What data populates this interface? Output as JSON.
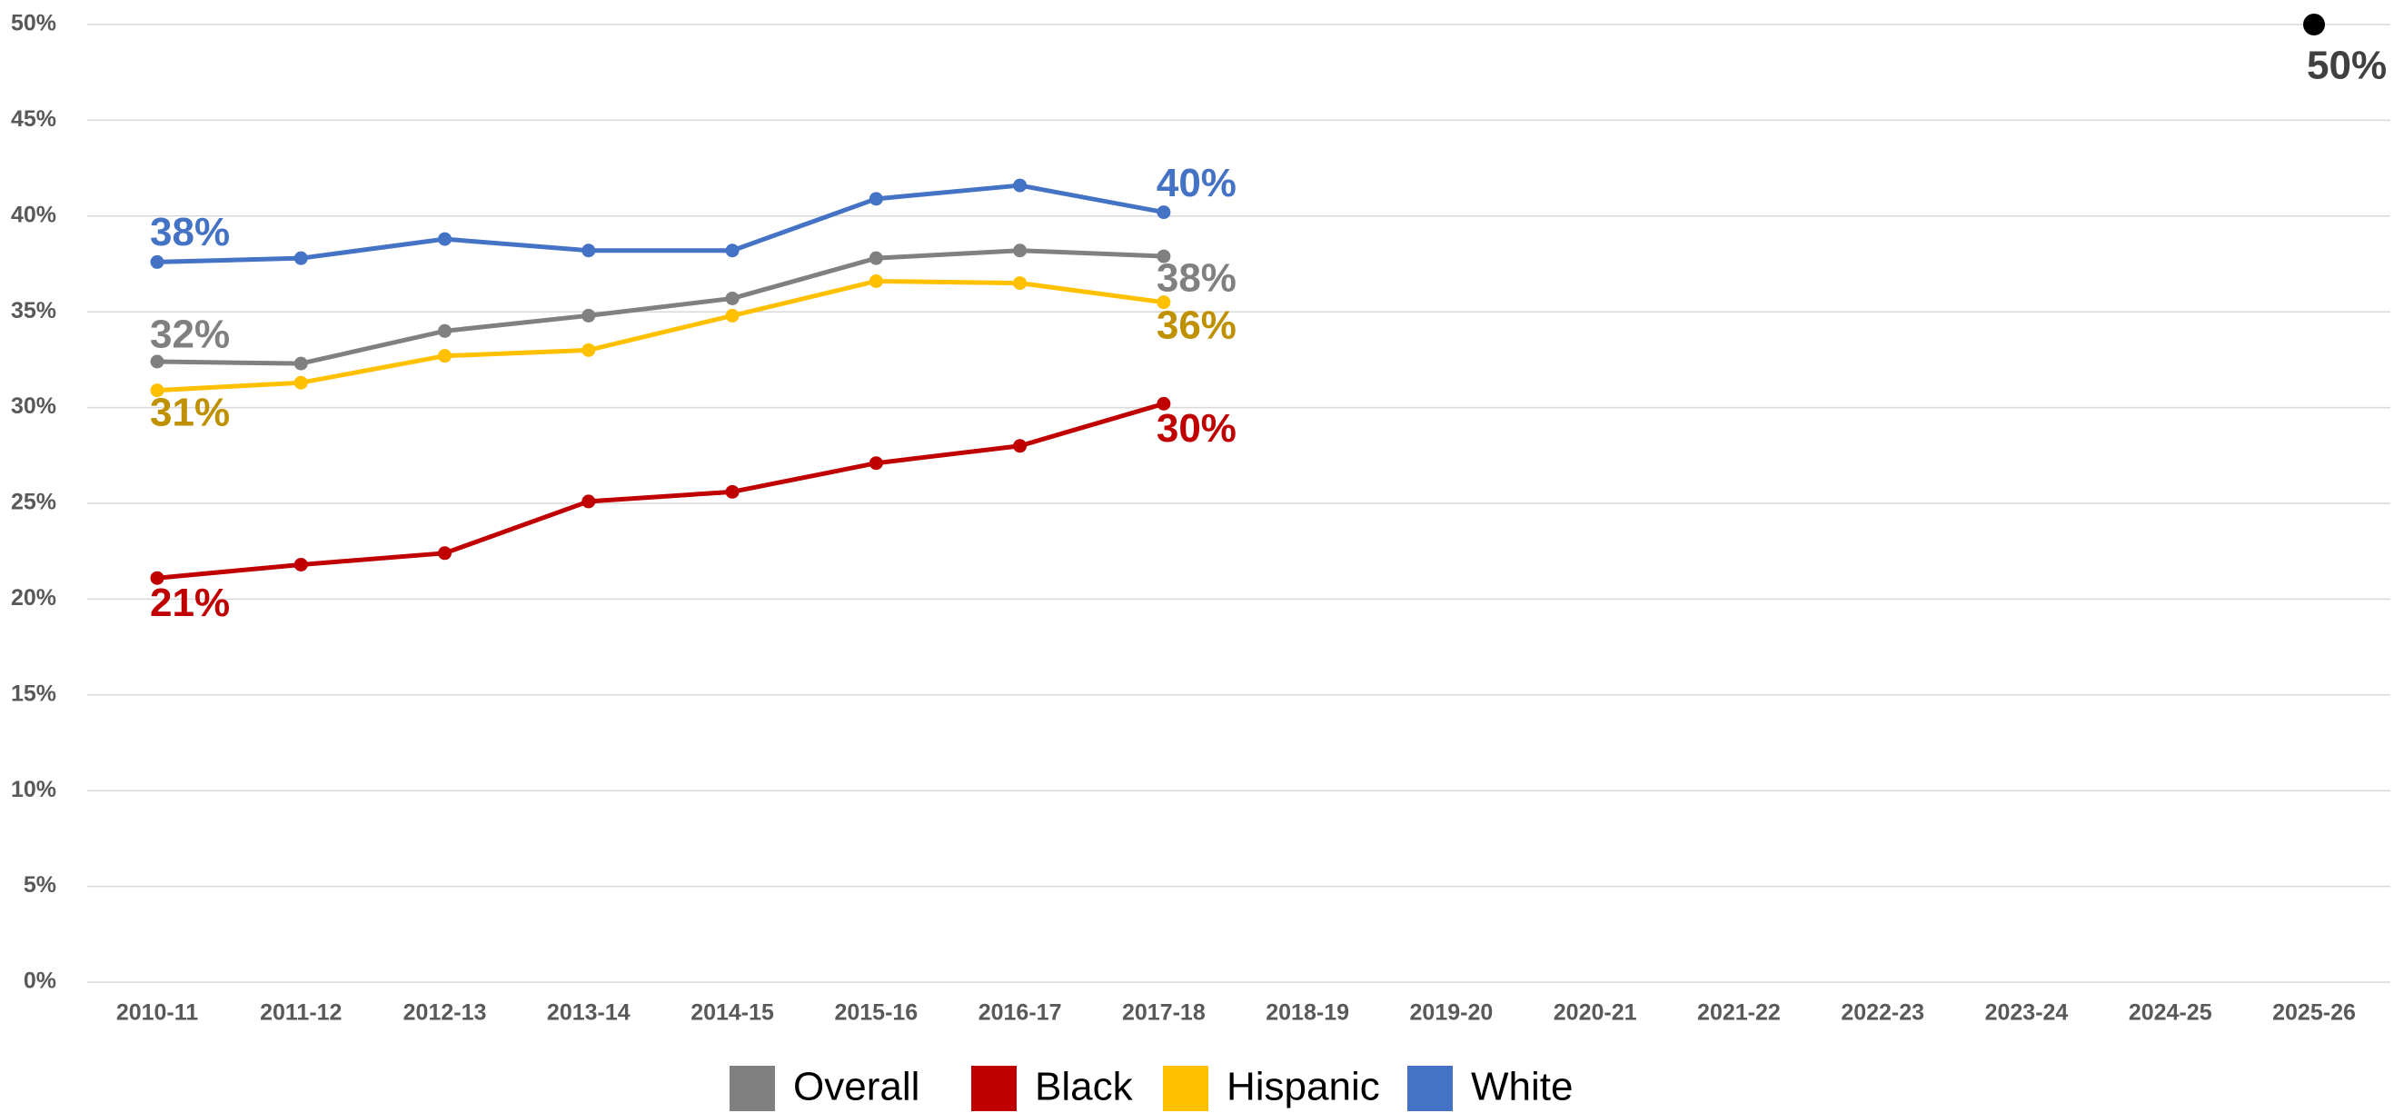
{
  "chart_data": {
    "type": "line",
    "categories": [
      "2010-11",
      "2011-12",
      "2012-13",
      "2013-14",
      "2014-15",
      "2015-16",
      "2016-17",
      "2017-18",
      "2018-19",
      "2019-20",
      "2020-21",
      "2021-22",
      "2022-23",
      "2023-24",
      "2024-25",
      "2025-26"
    ],
    "ylim": [
      0,
      50
    ],
    "yticks": [
      {
        "value": 0,
        "label": "0%"
      },
      {
        "value": 5,
        "label": "5%"
      },
      {
        "value": 10,
        "label": "10%"
      },
      {
        "value": 15,
        "label": "15%"
      },
      {
        "value": 20,
        "label": "20%"
      },
      {
        "value": 25,
        "label": "25%"
      },
      {
        "value": 30,
        "label": "30%"
      },
      {
        "value": 35,
        "label": "35%"
      },
      {
        "value": 40,
        "label": "40%"
      },
      {
        "value": 45,
        "label": "45%"
      },
      {
        "value": 50,
        "label": "50%"
      }
    ],
    "grid": true,
    "legend": "bottom",
    "series": [
      {
        "name": "Overall",
        "color": "#808080",
        "label_color": "#808080",
        "values": [
          32.4,
          32.3,
          34.0,
          34.8,
          35.7,
          37.8,
          38.2,
          37.9,
          null,
          null,
          null,
          null,
          null,
          null,
          null,
          null
        ],
        "value_labels": [
          "32%",
          null,
          null,
          null,
          null,
          null,
          null,
          "38%",
          null,
          null,
          null,
          null,
          null,
          null,
          null,
          null
        ],
        "projection": {
          "style": "dashed",
          "values": [
            null,
            null,
            null,
            null,
            35.7,
            null,
            null,
            null,
            null,
            null,
            null,
            null,
            null,
            null,
            null,
            50
          ]
        }
      },
      {
        "name": "Black",
        "color": "#c00000",
        "label_color": "#c00000",
        "values": [
          21.1,
          21.8,
          22.4,
          25.1,
          25.6,
          27.1,
          28.0,
          30.2,
          null,
          null,
          null,
          null,
          null,
          null,
          null,
          null
        ],
        "value_labels": [
          "21%",
          null,
          null,
          null,
          null,
          null,
          null,
          "30%",
          null,
          null,
          null,
          null,
          null,
          null,
          null,
          null
        ],
        "projection": {
          "style": "dotted",
          "values": [
            null,
            null,
            null,
            null,
            25.6,
            null,
            null,
            null,
            null,
            null,
            null,
            null,
            null,
            null,
            null,
            50
          ]
        }
      },
      {
        "name": "Hispanic",
        "color": "#ffc000",
        "label_color": "#bf9000",
        "values": [
          30.9,
          31.3,
          32.7,
          33.0,
          34.8,
          36.6,
          36.5,
          35.5,
          null,
          null,
          null,
          null,
          null,
          null,
          null,
          null
        ],
        "value_labels": [
          "31%",
          null,
          null,
          null,
          null,
          null,
          null,
          "36%",
          null,
          null,
          null,
          null,
          null,
          null,
          null,
          null
        ],
        "projection": {
          "style": "dotted",
          "values": [
            null,
            null,
            null,
            null,
            34.8,
            null,
            null,
            null,
            null,
            null,
            null,
            null,
            null,
            null,
            null,
            50
          ]
        }
      },
      {
        "name": "White",
        "color": "#4472c4",
        "label_color": "#4472c4",
        "values": [
          37.6,
          37.8,
          38.8,
          38.2,
          38.2,
          40.9,
          41.6,
          40.2,
          null,
          null,
          null,
          null,
          null,
          null,
          null,
          null
        ],
        "value_labels": [
          "38%",
          null,
          null,
          null,
          null,
          null,
          null,
          "40%",
          null,
          null,
          null,
          null,
          null,
          null,
          null,
          null
        ],
        "projection": {
          "style": "dotted",
          "values": [
            null,
            null,
            null,
            null,
            38.2,
            null,
            null,
            null,
            null,
            null,
            null,
            null,
            null,
            null,
            null,
            50
          ]
        }
      }
    ],
    "target": {
      "value": 50,
      "value_label": "50%",
      "color": "#000000",
      "label_color": "#404040"
    }
  }
}
